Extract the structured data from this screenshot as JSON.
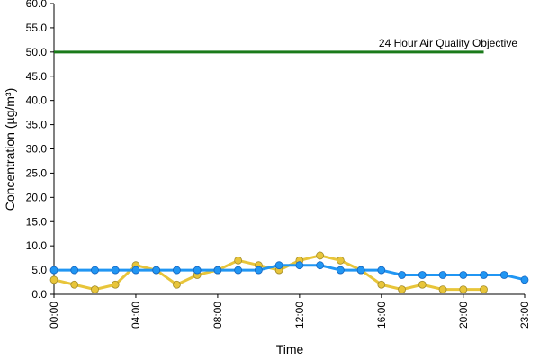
{
  "chart_data": {
    "type": "line",
    "xlabel": "Time",
    "ylabel": "Concentration (µg/m³)",
    "ylim": [
      0,
      60
    ],
    "yticks": [
      "0.0",
      "5.0",
      "10.0",
      "15.0",
      "20.0",
      "25.0",
      "30.0",
      "35.0",
      "40.0",
      "45.0",
      "50.0",
      "55.0",
      "60.0"
    ],
    "xlim": [
      0,
      23
    ],
    "xtick_labels": [
      {
        "hour": 0,
        "label": "00:00"
      },
      {
        "hour": 4,
        "label": "04:00"
      },
      {
        "hour": 8,
        "label": "08:00"
      },
      {
        "hour": 12,
        "label": "12:00"
      },
      {
        "hour": 16,
        "label": "16:00"
      },
      {
        "hour": 20,
        "label": "20:00"
      },
      {
        "hour": 23,
        "label": "23:00"
      }
    ],
    "grid": false,
    "objective": {
      "value": 50,
      "x_range": [
        0,
        21
      ],
      "label": "24 Hour Air Quality Objective",
      "color": "#1a7a1a"
    },
    "series": [
      {
        "color": "#e8c53a",
        "marker_edge": "#a08a2a",
        "x": [
          0,
          1,
          2,
          3,
          4,
          5,
          6,
          7,
          8,
          9,
          10,
          11,
          12,
          13,
          14,
          15,
          16,
          17,
          18,
          19,
          20,
          21
        ],
        "values": [
          3,
          2,
          1,
          2,
          6,
          5,
          2,
          4,
          5,
          7,
          6,
          5,
          7,
          8,
          7,
          5,
          2,
          1,
          2,
          1,
          1,
          1
        ]
      },
      {
        "color": "#2196f3",
        "marker_edge": "#1565c0",
        "x": [
          0,
          1,
          2,
          3,
          4,
          5,
          6,
          7,
          8,
          9,
          10,
          11,
          12,
          13,
          14,
          15,
          16,
          17,
          18,
          19,
          20,
          21,
          22,
          23
        ],
        "values": [
          5,
          5,
          5,
          5,
          5,
          5,
          5,
          5,
          5,
          5,
          5,
          6,
          6,
          6,
          5,
          5,
          5,
          4,
          4,
          4,
          4,
          4,
          4,
          3
        ]
      }
    ]
  }
}
